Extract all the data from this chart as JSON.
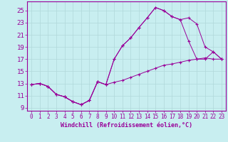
{
  "xlabel": "Windchill (Refroidissement éolien,°C)",
  "bg_color": "#c8eef0",
  "line_color": "#990099",
  "grid_color": "#b0d8da",
  "yticks": [
    9,
    11,
    13,
    15,
    17,
    19,
    21,
    23,
    25
  ],
  "xticks": [
    0,
    1,
    2,
    3,
    4,
    5,
    6,
    7,
    8,
    9,
    10,
    11,
    12,
    13,
    14,
    15,
    16,
    17,
    18,
    19,
    20,
    21,
    22,
    23
  ],
  "line1_x": [
    0,
    1,
    2,
    3,
    4,
    5,
    6,
    7,
    8,
    9,
    10,
    11,
    12,
    13,
    14,
    15,
    16,
    17,
    18,
    19,
    20,
    21,
    22,
    23
  ],
  "line1_y": [
    12.8,
    13.0,
    12.5,
    11.2,
    10.8,
    10.0,
    9.5,
    10.2,
    13.3,
    12.8,
    13.2,
    13.5,
    14.0,
    14.5,
    15.0,
    15.5,
    16.0,
    16.2,
    16.5,
    16.8,
    17.0,
    17.2,
    17.0,
    17.0
  ],
  "line2_x": [
    0,
    1,
    2,
    3,
    4,
    5,
    6,
    7,
    8,
    9,
    10,
    11,
    12,
    13,
    14,
    15,
    16,
    17,
    18,
    19,
    20,
    21,
    22,
    23
  ],
  "line2_y": [
    12.8,
    13.0,
    12.5,
    11.2,
    10.8,
    10.0,
    9.5,
    10.2,
    13.3,
    12.8,
    17.0,
    19.2,
    20.5,
    22.2,
    23.8,
    25.5,
    25.0,
    24.0,
    23.5,
    23.8,
    22.8,
    19.0,
    18.2,
    17.0
  ],
  "line3_x": [
    0,
    1,
    2,
    3,
    4,
    5,
    6,
    7,
    8,
    9,
    10,
    11,
    12,
    13,
    14,
    15,
    16,
    17,
    18,
    19,
    20,
    21,
    22,
    23
  ],
  "line3_y": [
    12.8,
    13.0,
    12.5,
    11.2,
    10.8,
    10.0,
    9.5,
    10.2,
    13.3,
    12.8,
    17.0,
    19.2,
    20.5,
    22.2,
    23.8,
    25.5,
    25.0,
    24.0,
    23.5,
    20.0,
    17.0,
    17.0,
    18.2,
    17.0
  ],
  "xlabel_fontsize": 6,
  "ytick_fontsize": 6.5,
  "xtick_fontsize": 5.5
}
